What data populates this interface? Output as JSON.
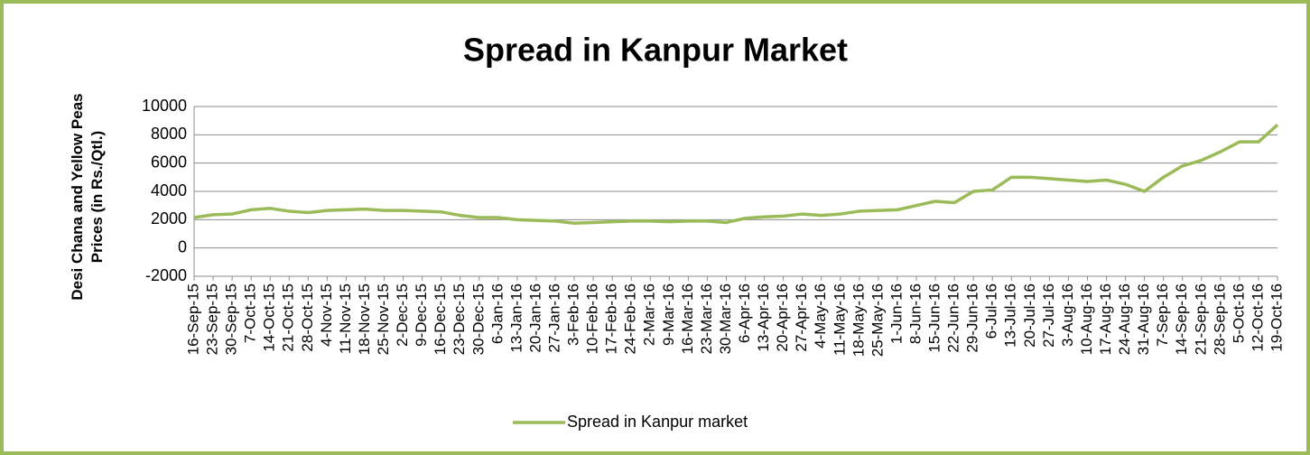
{
  "chart_data": {
    "type": "line",
    "title": "Spread in Kanpur Market",
    "y_label": "Desi  Chana and Yellow Peas Prices (in Rs./Qtl.)",
    "categories": [
      "16-Sep-15",
      "23-Sep-15",
      "30-Sep-15",
      "7-Oct-15",
      "14-Oct-15",
      "21-Oct-15",
      "28-Oct-15",
      "4-Nov-15",
      "11-Nov-15",
      "18-Nov-15",
      "25-Nov-15",
      "2-Dec-15",
      "9-Dec-15",
      "16-Dec-15",
      "23-Dec-15",
      "30-Dec-15",
      "6-Jan-16",
      "13-Jan-16",
      "20-Jan-16",
      "27-Jan-16",
      "3-Feb-16",
      "10-Feb-16",
      "17-Feb-16",
      "24-Feb-16",
      "2-Mar-16",
      "9-Mar-16",
      "16-Mar-16",
      "23-Mar-16",
      "30-Mar-16",
      "6-Apr-16",
      "13-Apr-16",
      "20-Apr-16",
      "27-Apr-16",
      "4-May-16",
      "11-May-16",
      "18-May-16",
      "25-May-16",
      "1-Jun-16",
      "8-Jun-16",
      "15-Jun-16",
      "22-Jun-16",
      "29-Jun-16",
      "6-Jul-16",
      "13-Jul-16",
      "20-Jul-16",
      "27-Jul-16",
      "3-Aug-16",
      "10-Aug-16",
      "17-Aug-16",
      "24-Aug-16",
      "31-Aug-16",
      "7-Sep-16",
      "14-Sep-16",
      "21-Sep-16",
      "28-Sep-16",
      "5-Oct-16",
      "12-Oct-16",
      "19-Oct-16"
    ],
    "series": [
      {
        "name": "Spread in Kanpur market",
        "color": "#9bbb59",
        "values": [
          2150,
          2350,
          2400,
          2700,
          2800,
          2600,
          2500,
          2650,
          2700,
          2750,
          2650,
          2650,
          2600,
          2550,
          2300,
          2150,
          2150,
          2000,
          1950,
          1900,
          1750,
          1800,
          1850,
          1900,
          1900,
          1850,
          1900,
          1900,
          1800,
          2100,
          2200,
          2250,
          2400,
          2300,
          2400,
          2600,
          2650,
          2700,
          3000,
          3300,
          3200,
          4000,
          4100,
          5000,
          5000,
          4900,
          4800,
          4700,
          4800,
          4500,
          4000,
          5000,
          5800,
          6200,
          6800,
          7500,
          7500,
          8700
        ]
      }
    ],
    "ylim": [
      -2000,
      10000
    ],
    "yticks": [
      -2000,
      0,
      2000,
      4000,
      6000,
      8000,
      10000
    ],
    "grid": true,
    "legend": "bottom"
  }
}
